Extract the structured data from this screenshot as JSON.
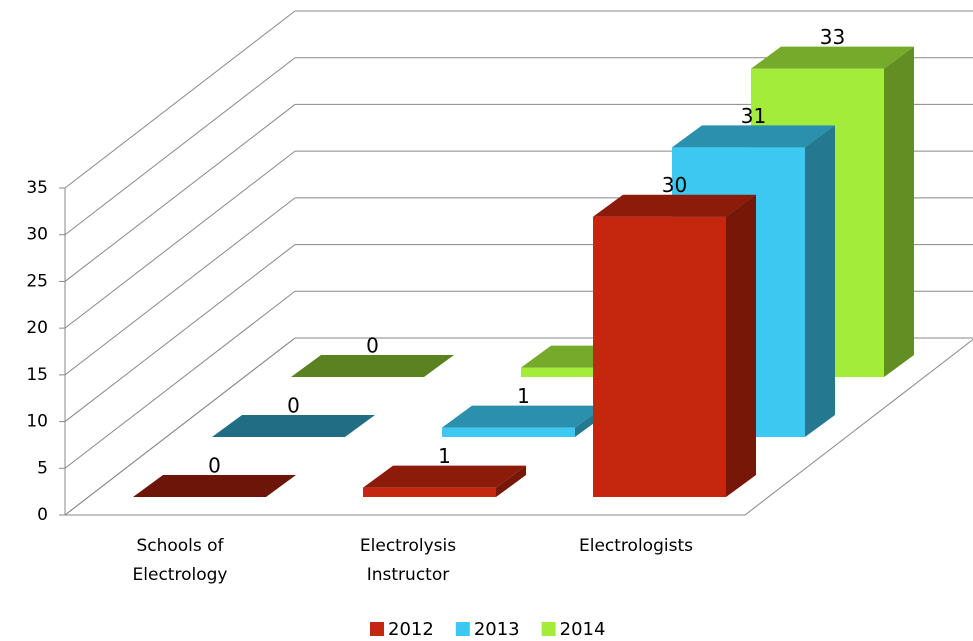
{
  "chart_data": {
    "type": "bar3d",
    "categories": [
      "Schools of Electrology",
      "Electrolysis Instructor",
      "Electrologists"
    ],
    "series": [
      {
        "name": "2012",
        "color": "#c4260e",
        "values": [
          0,
          1,
          30
        ]
      },
      {
        "name": "2013",
        "color": "#3cc8f0",
        "values": [
          0,
          1,
          31
        ]
      },
      {
        "name": "2014",
        "color": "#a4ec3a",
        "values": [
          0,
          1,
          33
        ]
      }
    ],
    "ylim": [
      0,
      35
    ],
    "yticks": [
      0,
      5,
      10,
      15,
      20,
      25,
      30,
      35
    ],
    "grid": true,
    "legend": "bottom"
  }
}
